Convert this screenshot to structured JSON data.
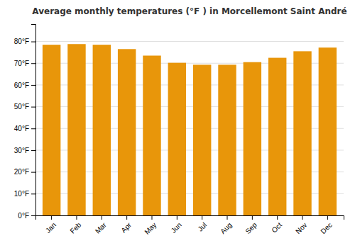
{
  "chart_data": {
    "type": "bar",
    "title": "Average monthly temperatures (°F ) in Morcellemont Saint André",
    "categories": [
      "Jan",
      "Feb",
      "Mar",
      "Apr",
      "May",
      "Jun",
      "Jul",
      "Aug",
      "Sep",
      "Oct",
      "Nov",
      "Dec"
    ],
    "values": [
      78.5,
      78.8,
      78.5,
      76.5,
      73.5,
      70.2,
      69.3,
      69.3,
      70.5,
      72.5,
      75.5,
      77.2
    ],
    "color": "#E8960A",
    "ylim": [
      0,
      88
    ],
    "yticks": [
      {
        "value": 0,
        "label": "0°F"
      },
      {
        "value": 10,
        "label": "10°F"
      },
      {
        "value": 20,
        "label": "20°F"
      },
      {
        "value": 30,
        "label": "30°F"
      },
      {
        "value": 40,
        "label": "40°F"
      },
      {
        "value": 50,
        "label": "50°F"
      },
      {
        "value": 60,
        "label": "60°F"
      },
      {
        "value": 70,
        "label": "70°F"
      },
      {
        "value": 80,
        "label": "80°F"
      }
    ],
    "grid": true
  }
}
